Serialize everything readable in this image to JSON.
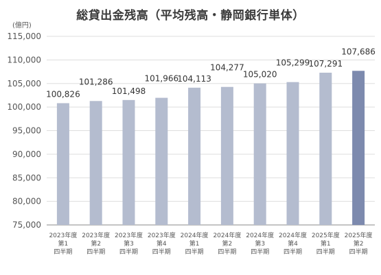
{
  "chart_data": {
    "type": "bar",
    "title": "総貸出金残高（平均残高・静岡銀行単体）",
    "unit": "(億円)",
    "ylim": [
      75000,
      115000
    ],
    "yticks": [
      75000,
      80000,
      85000,
      90000,
      95000,
      100000,
      105000,
      110000,
      115000
    ],
    "ytick_labels": [
      "75,000",
      "80,000",
      "85,000",
      "90,000",
      "95,000",
      "100,000",
      "105,000",
      "110,000",
      "115,000"
    ],
    "grid": true,
    "categories": [
      [
        "2023年度",
        "第1",
        "四半期"
      ],
      [
        "2023年度",
        "第2",
        "四半期"
      ],
      [
        "2023年度",
        "第3",
        "四半期"
      ],
      [
        "2023年度",
        "第4",
        "四半期"
      ],
      [
        "2024年度",
        "第1",
        "四半期"
      ],
      [
        "2024年度",
        "第2",
        "四半期"
      ],
      [
        "2024年度",
        "第3",
        "四半期"
      ],
      [
        "2024年度",
        "第4",
        "四半期"
      ],
      [
        "2025年度",
        "第1",
        "四半期"
      ],
      [
        "2025年度",
        "第2",
        "四半期"
      ]
    ],
    "values": [
      100826,
      101286,
      101498,
      101966,
      104113,
      104277,
      105020,
      105299,
      107291,
      107686
    ],
    "value_labels": [
      "100,826",
      "101,286",
      "101,498",
      "101,966",
      "104,113",
      "104,277",
      "105,020",
      "105,299",
      "107,291",
      "107,686"
    ],
    "bar_color": "#b4bccf",
    "highlight_color": "#7d8aae",
    "highlight_index": 9,
    "grid_color": "#dddddd",
    "axis_color": "#888888"
  }
}
